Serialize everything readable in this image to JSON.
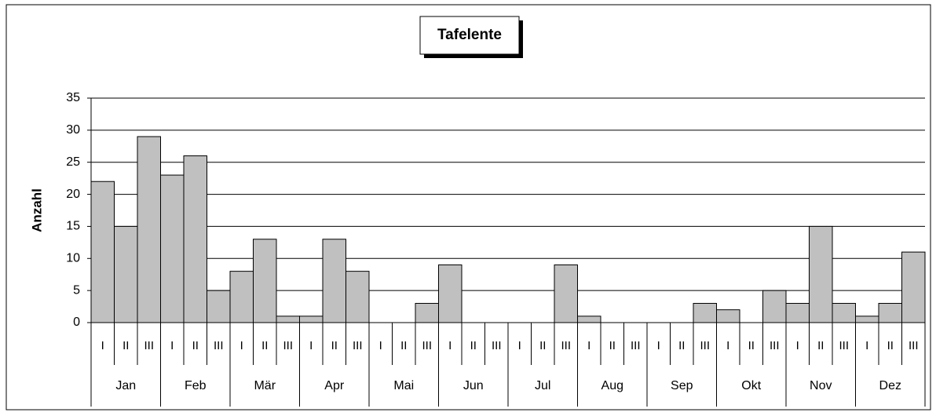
{
  "chart_data": {
    "type": "bar",
    "title": "Tafelente",
    "y_label": "Anzahl",
    "categories": [
      "I",
      "II",
      "III",
      "I",
      "II",
      "III",
      "I",
      "II",
      "III",
      "I",
      "II",
      "III",
      "I",
      "II",
      "III",
      "I",
      "II",
      "III",
      "I",
      "II",
      "III",
      "I",
      "II",
      "III",
      "I",
      "II",
      "III",
      "I",
      "II",
      "III",
      "I",
      "II",
      "III",
      "I",
      "II",
      "III"
    ],
    "groups": [
      "Jan",
      "Feb",
      "Mär",
      "Apr",
      "Mai",
      "Jun",
      "Jul",
      "Aug",
      "Sep",
      "Okt",
      "Nov",
      "Dez"
    ],
    "values": [
      22,
      15,
      29,
      23,
      26,
      5,
      8,
      13,
      1,
      1,
      13,
      8,
      0,
      0,
      3,
      9,
      0,
      0,
      0,
      0,
      9,
      1,
      0,
      0,
      0,
      0,
      3,
      2,
      0,
      5,
      3,
      15,
      3,
      1,
      3,
      11
    ],
    "color": "#c0c0c0",
    "ylim": [
      0,
      35
    ],
    "yticks": [
      0,
      5,
      10,
      15,
      20,
      25,
      30,
      35
    ],
    "grid": true
  }
}
